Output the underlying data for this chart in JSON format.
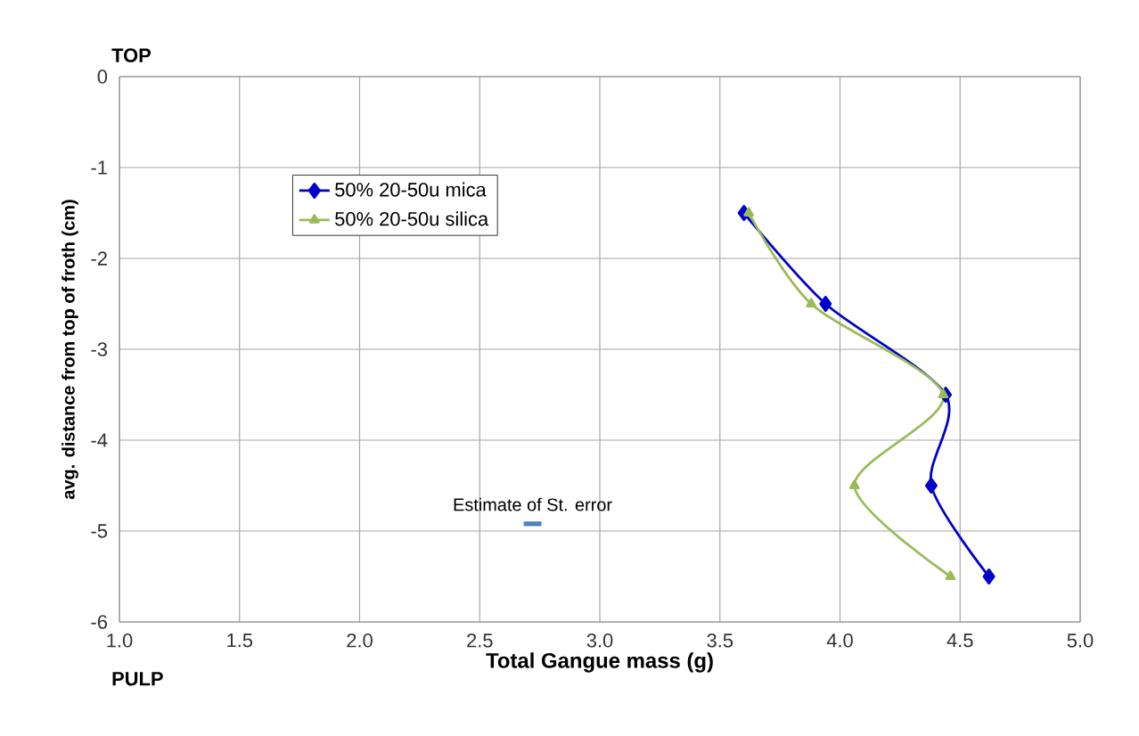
{
  "chart_data": {
    "type": "line",
    "xlabel": "**Total Gangue mass (g)**",
    "ylabel": "avg. distance from top of froth (cm)",
    "xlim": [
      1.0,
      5.0
    ],
    "xticks": [
      {
        "value": 1.0,
        "label": "1.0"
      },
      {
        "value": 1.5,
        "label": "1.5"
      },
      {
        "value": 2.0,
        "label": "2.0"
      },
      {
        "value": 2.5,
        "label": "2.5"
      },
      {
        "value": 3.0,
        "label": "3.0"
      },
      {
        "value": 3.5,
        "label": "3.5"
      },
      {
        "value": 4.0,
        "label": "4.0"
      },
      {
        "value": 4.5,
        "label": "4.5"
      },
      {
        "value": 5.0,
        "label": "5.0"
      }
    ],
    "ylim": [
      -6,
      0
    ],
    "yticks": [
      -6,
      -5,
      -4,
      -3,
      -2,
      -1,
      0
    ],
    "grid": true,
    "legend": "top left",
    "annotations": [
      "**TOP**",
      "**PULP**",
      "Estimate of St. error"
    ],
    "series": [
      {
        "name": "50% 20-50u mica",
        "color": "#0000cc",
        "marker": "diamond",
        "x": [
          3.6,
          3.94,
          4.44,
          4.38,
          4.62
        ],
        "values": [
          -1.5,
          -2.5,
          -3.5,
          -4.5,
          -5.5
        ]
      },
      {
        "name": "50% 20-50u silica",
        "color": "#9bbb59",
        "marker": "triangle",
        "x": [
          3.62,
          3.88,
          4.43,
          4.06,
          4.46
        ],
        "values": [
          -1.5,
          -2.5,
          -3.5,
          -4.5,
          -5.5
        ]
      }
    ]
  }
}
